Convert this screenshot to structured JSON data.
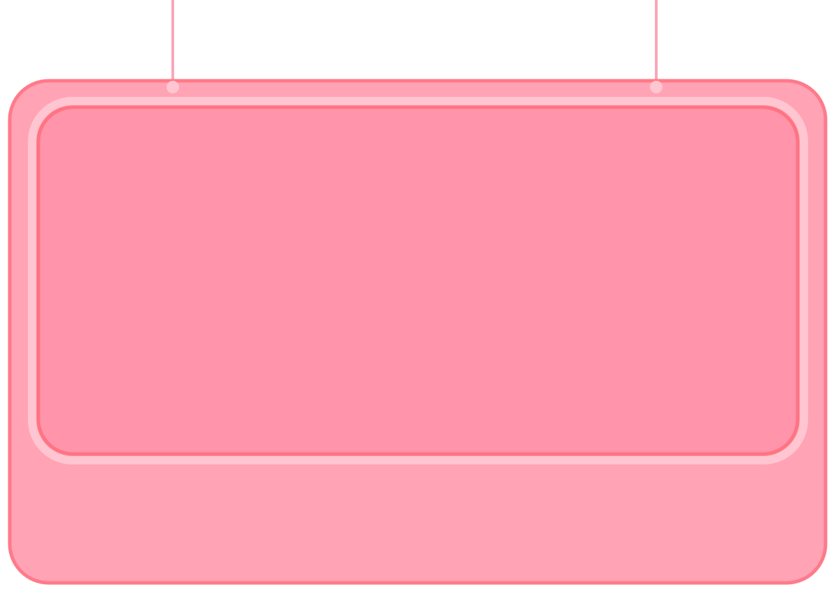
{
  "sign": {
    "colors": {
      "background": "#ffffff",
      "cord": "#f9a8b8",
      "board_fill": "#ffa3b5",
      "board_border": "#ff7a8a",
      "inner_frame": "#ffc5d0",
      "panel_fill": "#ff94ab",
      "panel_border": "#ff7482"
    },
    "panel_text": ""
  }
}
